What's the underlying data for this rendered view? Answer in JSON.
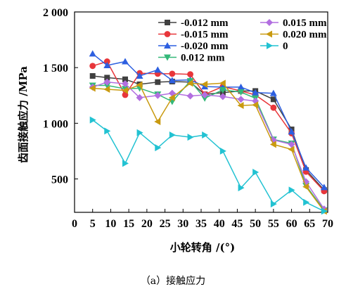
{
  "caption": "（a）接触应力",
  "chart_data": {
    "type": "line",
    "xlabel": "小轮转角 /(°)",
    "ylabel": "齿面接触应力 /MPa",
    "xlim": [
      0,
      70
    ],
    "ylim": [
      200,
      2000
    ],
    "x_ticks": [
      0,
      5,
      10,
      15,
      20,
      25,
      30,
      35,
      40,
      45,
      50,
      55,
      60,
      65,
      70
    ],
    "x_tick_labels": [
      "0",
      "5",
      "10",
      "15",
      "20",
      "25",
      "30",
      "35",
      "40",
      "45",
      "50",
      "55",
      "60",
      "65",
      "70"
    ],
    "y_ticks": [
      500,
      1000,
      1500,
      2000
    ],
    "y_tick_labels": [
      "500",
      "1 000",
      "1 500",
      "2 000"
    ],
    "legend_position": "top-right",
    "grid": false,
    "series": [
      {
        "name": "-0.012 mm",
        "color": "#404040",
        "marker": "square",
        "x": [
          5,
          9,
          14,
          18,
          23,
          27,
          32,
          36,
          41,
          46,
          50,
          55,
          60,
          64,
          69
        ],
        "y": [
          1425,
          1410,
          1395,
          1350,
          1370,
          1375,
          1370,
          1260,
          1275,
          1290,
          1290,
          1215,
          945,
          580,
          400
        ]
      },
      {
        "name": "-0.015 mm",
        "color": "#e8363a",
        "marker": "circle",
        "x": [
          5,
          9,
          14,
          18,
          23,
          27,
          32,
          36,
          41,
          46,
          50,
          55,
          60,
          64,
          69
        ],
        "y": [
          1515,
          1555,
          1255,
          1450,
          1445,
          1445,
          1440,
          1260,
          1330,
          1290,
          1255,
          1140,
          910,
          565,
          390
        ]
      },
      {
        "name": "-0.020 mm",
        "color": "#2d5fe0",
        "marker": "triangle-up",
        "x": [
          5,
          9,
          14,
          18,
          23,
          27,
          32,
          36,
          41,
          46,
          50,
          55,
          60,
          64,
          69
        ],
        "y": [
          1625,
          1520,
          1555,
          1425,
          1480,
          1385,
          1390,
          1330,
          1325,
          1325,
          1275,
          1270,
          925,
          600,
          425
        ]
      },
      {
        "name": "0.012 mm",
        "color": "#33b878",
        "marker": "triangle-down",
        "x": [
          5,
          9,
          14,
          18,
          23,
          27,
          32,
          36,
          41,
          46,
          50,
          55,
          60,
          64,
          69
        ],
        "y": [
          1340,
          1340,
          1310,
          1315,
          1260,
          1195,
          1380,
          1225,
          1300,
          1280,
          1225,
          855,
          820,
          440,
          220
        ]
      },
      {
        "name": "0.015 mm",
        "color": "#b26fe0",
        "marker": "diamond",
        "x": [
          5,
          9,
          14,
          18,
          23,
          27,
          32,
          36,
          41,
          46,
          50,
          55,
          60,
          64,
          69
        ],
        "y": [
          1325,
          1370,
          1355,
          1230,
          1250,
          1270,
          1245,
          1255,
          1240,
          1215,
          1200,
          850,
          810,
          475,
          230
        ]
      },
      {
        "name": "0.020 mm",
        "color": "#c99a10",
        "marker": "triangle-left",
        "x": [
          5,
          9,
          14,
          18,
          23,
          27,
          32,
          36,
          41,
          46,
          50,
          55,
          60,
          64,
          69
        ],
        "y": [
          1315,
          1305,
          1295,
          1345,
          1015,
          1230,
          1360,
          1350,
          1360,
          1160,
          1165,
          810,
          765,
          430,
          210
        ]
      },
      {
        "name": "0",
        "color": "#22c2d2",
        "marker": "triangle-right",
        "x": [
          5,
          9,
          14,
          18,
          23,
          27,
          32,
          36,
          41,
          46,
          50,
          55,
          60,
          64,
          69
        ],
        "y": [
          1030,
          930,
          640,
          915,
          780,
          895,
          875,
          895,
          750,
          420,
          560,
          275,
          400,
          290,
          210
        ]
      }
    ]
  }
}
